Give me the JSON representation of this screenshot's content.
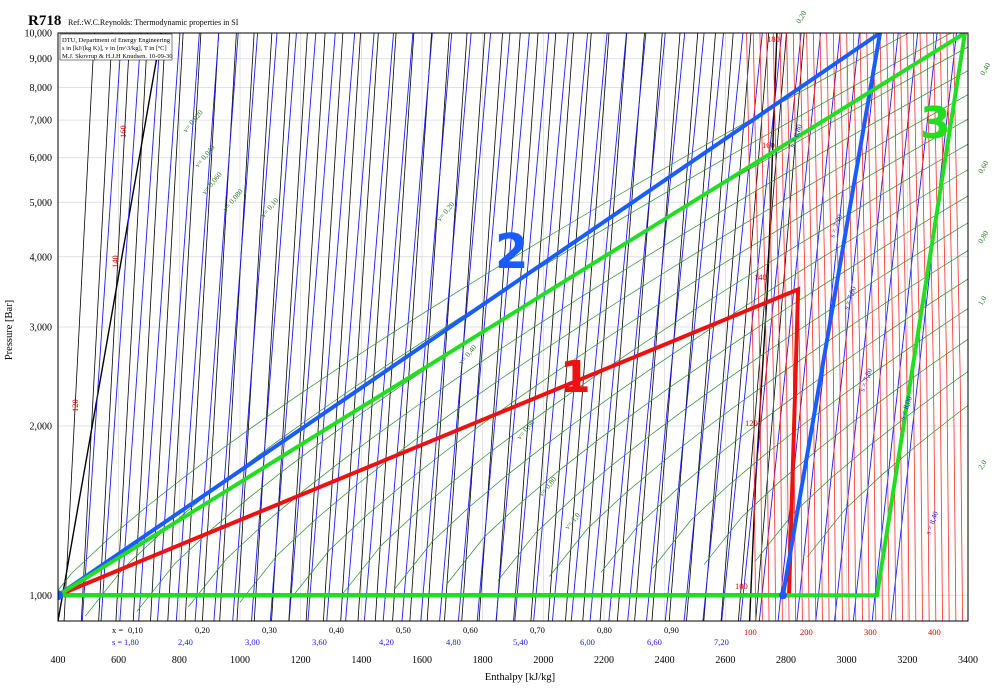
{
  "chart_data": {
    "type": "line",
    "title": "R718",
    "subtitle": "Ref.:W.C.Reynolds: Thermodynamic properties in SI",
    "info_box": [
      "DTU, Department of Energy Engineering",
      "s in [kJ/(kg K)], v in [m^3/kg], T in [ºC]",
      "M.J. Skovrup & H.J.H Knudsen. 10-09-30"
    ],
    "xlabel": "Enthalpy [kJ/kg]",
    "ylabel": "Pressure [Bar]",
    "xlim": [
      400,
      3400
    ],
    "ylim": [
      0.9,
      10
    ],
    "y_scale": "log",
    "x_ticks": [
      "400",
      "600",
      "800",
      "1000",
      "1200",
      "1400",
      "1600",
      "1800",
      "2000",
      "2200",
      "2400",
      "2600",
      "2800",
      "3000",
      "3200",
      "3400"
    ],
    "y_ticks": [
      {
        "value": 1,
        "label": "1,000"
      },
      {
        "value": 2,
        "label": "2,000"
      },
      {
        "value": 3,
        "label": "3,000"
      },
      {
        "value": 4,
        "label": "4,000"
      },
      {
        "value": 5,
        "label": "5,000"
      },
      {
        "value": 6,
        "label": "6,000"
      },
      {
        "value": 7,
        "label": "7,000"
      },
      {
        "value": 8,
        "label": "8,000"
      },
      {
        "value": 9,
        "label": "9,000"
      },
      {
        "value": 10,
        "label": "10,000"
      }
    ],
    "quality_prefix": "x =",
    "quality_labels": [
      "0,10",
      "0,20",
      "0,30",
      "0,40",
      "0,50",
      "0,60",
      "0,70",
      "0,80",
      "0,90"
    ],
    "entropy_prefix": "s =",
    "entropy_labels": [
      "1,80",
      "2,40",
      "3,00",
      "3,60",
      "4,20",
      "4,80",
      "5,40",
      "6,00",
      "6,60",
      "7,20"
    ],
    "temperature_bottom_labels": [
      "100",
      "200",
      "300",
      "400"
    ],
    "isotherm_labels": [
      "100",
      "120",
      "140",
      "160",
      "180"
    ],
    "specific_volume_labels": [
      "v= 0,020",
      "v= 0,040",
      "v= 0,060",
      "v= 0,080",
      "v= 0,10",
      "v= 0,20",
      "v= 0,40",
      "v= 0,60",
      "v= 0,80",
      "v= 1,0"
    ],
    "right_volume_labels": [
      "0,20",
      "0,40",
      "0,60",
      "0,80",
      "1,0",
      "2,0"
    ],
    "isentrope_labels": [
      "s = 6,80",
      "s = 7,20",
      "s = 7,60",
      "s = 7,80",
      "s = 8,00",
      "s = 8,40"
    ],
    "grid": true,
    "colors": {
      "quality": "#000000",
      "isentrope": "#1a1aff",
      "isotherm": "#ff2a2a",
      "isochore": "#2a8a2a",
      "cycle1": "#ee1111",
      "cycle2": "#1a5cff",
      "cycle3": "#22dd22"
    },
    "series": [
      {
        "name": "1",
        "x": [
          400,
          2840,
          2810,
          2810,
          400
        ],
        "y": [
          1.0,
          3.5,
          1.0,
          1.0,
          1.0
        ]
      },
      {
        "name": "2",
        "x": [
          400,
          3110,
          2790,
          400
        ],
        "y": [
          1.0,
          10.0,
          1.0,
          1.0
        ]
      },
      {
        "name": "3",
        "x": [
          400,
          3390,
          3100,
          400
        ],
        "y": [
          1.0,
          10.0,
          1.0,
          1.0
        ]
      }
    ]
  }
}
